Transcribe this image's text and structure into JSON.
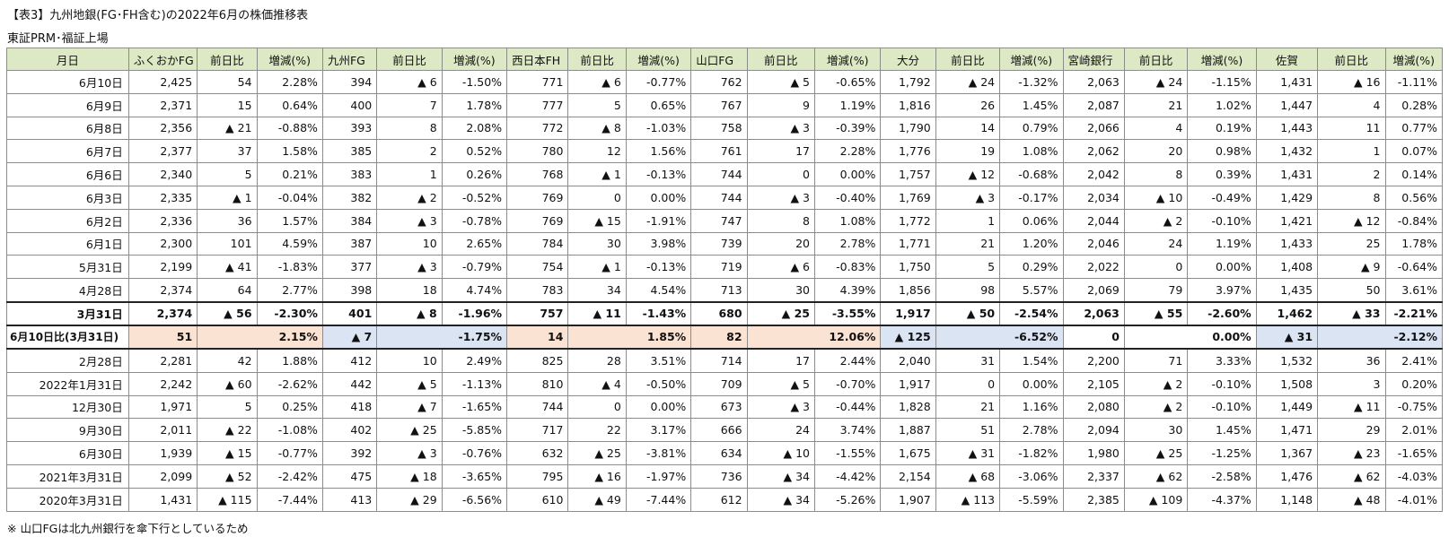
{
  "title": "【表3】九州地銀(FG･FH含む)の2022年6月の株価推移表",
  "subtitle": "東証PRM･福証上場",
  "headers": [
    "月日",
    "ふくおかFG",
    "前日比",
    "増減(%)",
    "九州FG",
    "前日比",
    "増減(%)",
    "西日本FH",
    "前日比",
    "増減(%)",
    "山口FG",
    "前日比",
    "増減(%)",
    "大分",
    "前日比",
    "増減(%)",
    "宮崎銀行",
    "前日比",
    "増減(%)",
    "佐賀",
    "前日比",
    "増減(%)"
  ],
  "rows_top": [
    [
      "6月10日",
      "2,425",
      "54",
      "2.28%",
      "394",
      "▲ 6",
      "-1.50%",
      "771",
      "▲ 6",
      "-0.77%",
      "762",
      "▲ 5",
      "-0.65%",
      "1,792",
      "▲ 24",
      "-1.32%",
      "2,063",
      "▲ 24",
      "-1.15%",
      "1,431",
      "▲ 16",
      "-1.11%"
    ],
    [
      "6月9日",
      "2,371",
      "15",
      "0.64%",
      "400",
      "7",
      "1.78%",
      "777",
      "5",
      "0.65%",
      "767",
      "9",
      "1.19%",
      "1,816",
      "26",
      "1.45%",
      "2,087",
      "21",
      "1.02%",
      "1,447",
      "4",
      "0.28%"
    ],
    [
      "6月8日",
      "2,356",
      "▲ 21",
      "-0.88%",
      "393",
      "8",
      "2.08%",
      "772",
      "▲ 8",
      "-1.03%",
      "758",
      "▲ 3",
      "-0.39%",
      "1,790",
      "14",
      "0.79%",
      "2,066",
      "4",
      "0.19%",
      "1,443",
      "11",
      "0.77%"
    ],
    [
      "6月7日",
      "2,377",
      "37",
      "1.58%",
      "385",
      "2",
      "0.52%",
      "780",
      "12",
      "1.56%",
      "761",
      "17",
      "2.28%",
      "1,776",
      "19",
      "1.08%",
      "2,062",
      "20",
      "0.98%",
      "1,432",
      "1",
      "0.07%"
    ],
    [
      "6月6日",
      "2,340",
      "5",
      "0.21%",
      "383",
      "1",
      "0.26%",
      "768",
      "▲ 1",
      "-0.13%",
      "744",
      "0",
      "0.00%",
      "1,757",
      "▲ 12",
      "-0.68%",
      "2,042",
      "8",
      "0.39%",
      "1,431",
      "2",
      "0.14%"
    ],
    [
      "6月3日",
      "2,335",
      "▲ 1",
      "-0.04%",
      "382",
      "▲ 2",
      "-0.52%",
      "769",
      "0",
      "0.00%",
      "744",
      "▲ 3",
      "-0.40%",
      "1,769",
      "▲ 3",
      "-0.17%",
      "2,034",
      "▲ 10",
      "-0.49%",
      "1,429",
      "8",
      "0.56%"
    ],
    [
      "6月2日",
      "2,336",
      "36",
      "1.57%",
      "384",
      "▲ 3",
      "-0.78%",
      "769",
      "▲ 15",
      "-1.91%",
      "747",
      "8",
      "1.08%",
      "1,772",
      "1",
      "0.06%",
      "2,044",
      "▲ 2",
      "-0.10%",
      "1,421",
      "▲ 12",
      "-0.84%"
    ],
    [
      "6月1日",
      "2,300",
      "101",
      "4.59%",
      "387",
      "10",
      "2.65%",
      "784",
      "30",
      "3.98%",
      "739",
      "20",
      "2.78%",
      "1,771",
      "21",
      "1.20%",
      "2,046",
      "24",
      "1.19%",
      "1,433",
      "25",
      "1.78%"
    ],
    [
      "5月31日",
      "2,199",
      "▲ 41",
      "-1.83%",
      "377",
      "▲ 3",
      "-0.79%",
      "754",
      "▲ 1",
      "-0.13%",
      "719",
      "▲ 6",
      "-0.83%",
      "1,750",
      "5",
      "0.29%",
      "2,022",
      "0",
      "0.00%",
      "1,408",
      "▲ 9",
      "-0.64%"
    ],
    [
      "4月28日",
      "2,374",
      "64",
      "2.77%",
      "398",
      "18",
      "4.74%",
      "783",
      "34",
      "4.54%",
      "713",
      "30",
      "4.39%",
      "1,856",
      "98",
      "5.57%",
      "2,069",
      "79",
      "3.97%",
      "1,435",
      "50",
      "3.61%"
    ]
  ],
  "row_mar31": [
    "3月31日",
    "2,374",
    "▲ 56",
    "-2.30%",
    "401",
    "▲ 8",
    "-1.96%",
    "757",
    "▲ 11",
    "-1.43%",
    "680",
    "▲ 25",
    "-3.55%",
    "1,917",
    "▲ 50",
    "-2.54%",
    "2,063",
    "▲ 55",
    "-2.60%",
    "1,462",
    "▲ 33",
    "-2.21%"
  ],
  "row_compare": {
    "label": "6月10日比(3月31日)",
    "cells": [
      {
        "diff": "51",
        "pct": "2.15%"
      },
      {
        "diff": "▲ 7",
        "pct": "-1.75%"
      },
      {
        "diff": "14",
        "pct": "1.85%"
      },
      {
        "diff": "82",
        "pct": "12.06%"
      },
      {
        "diff": "▲ 125",
        "pct": "-6.52%"
      },
      {
        "diff": "0",
        "pct": "0.00%"
      },
      {
        "diff": "▲ 31",
        "pct": "-2.12%"
      }
    ]
  },
  "rows_bottom": [
    [
      "2月28日",
      "2,281",
      "42",
      "1.88%",
      "412",
      "10",
      "2.49%",
      "825",
      "28",
      "3.51%",
      "714",
      "17",
      "2.44%",
      "2,040",
      "31",
      "1.54%",
      "2,200",
      "71",
      "3.33%",
      "1,532",
      "36",
      "2.41%"
    ],
    [
      "2022年1月31日",
      "2,242",
      "▲ 60",
      "-2.62%",
      "442",
      "▲ 5",
      "-1.13%",
      "810",
      "▲ 4",
      "-0.50%",
      "709",
      "▲ 5",
      "-0.70%",
      "1,917",
      "0",
      "0.00%",
      "2,105",
      "▲ 2",
      "-0.10%",
      "1,508",
      "3",
      "0.20%"
    ],
    [
      "12月30日",
      "1,971",
      "5",
      "0.25%",
      "418",
      "▲ 7",
      "-1.65%",
      "744",
      "0",
      "0.00%",
      "673",
      "▲ 3",
      "-0.44%",
      "1,828",
      "21",
      "1.16%",
      "2,080",
      "▲ 2",
      "-0.10%",
      "1,449",
      "▲ 11",
      "-0.75%"
    ],
    [
      "9月30日",
      "2,011",
      "▲ 22",
      "-1.08%",
      "402",
      "▲ 25",
      "-5.85%",
      "717",
      "22",
      "3.17%",
      "666",
      "24",
      "3.74%",
      "1,887",
      "51",
      "2.78%",
      "2,094",
      "30",
      "1.45%",
      "1,471",
      "29",
      "2.01%"
    ],
    [
      "6月30日",
      "1,939",
      "▲ 15",
      "-0.77%",
      "392",
      "▲ 3",
      "-0.76%",
      "632",
      "▲ 25",
      "-3.81%",
      "634",
      "▲ 10",
      "-1.55%",
      "1,675",
      "▲ 31",
      "-1.82%",
      "1,980",
      "▲ 25",
      "-1.25%",
      "1,367",
      "▲ 23",
      "-1.65%"
    ],
    [
      "2021年3月31日",
      "2,099",
      "▲ 52",
      "-2.42%",
      "475",
      "▲ 18",
      "-3.65%",
      "795",
      "▲ 16",
      "-1.97%",
      "736",
      "▲ 34",
      "-4.42%",
      "2,154",
      "▲ 68",
      "-3.06%",
      "2,337",
      "▲ 62",
      "-2.58%",
      "1,476",
      "▲ 62",
      "-4.03%"
    ],
    [
      "2020年3月31日",
      "1,431",
      "▲ 115",
      "-7.44%",
      "413",
      "▲ 29",
      "-6.56%",
      "610",
      "▲ 49",
      "-7.44%",
      "612",
      "▲ 34",
      "-5.26%",
      "1,907",
      "▲ 113",
      "-5.59%",
      "2,385",
      "▲ 109",
      "-4.37%",
      "1,148",
      "▲ 48",
      "-4.01%"
    ]
  ],
  "note": "※ 山口FGは北九州銀行を傘下行としているため",
  "colors": {
    "header_bg": "#dde9c4",
    "compare_peach": "#fbe3d3",
    "compare_blue": "#dbe4f3",
    "grid_border": "#8c8c8c"
  }
}
